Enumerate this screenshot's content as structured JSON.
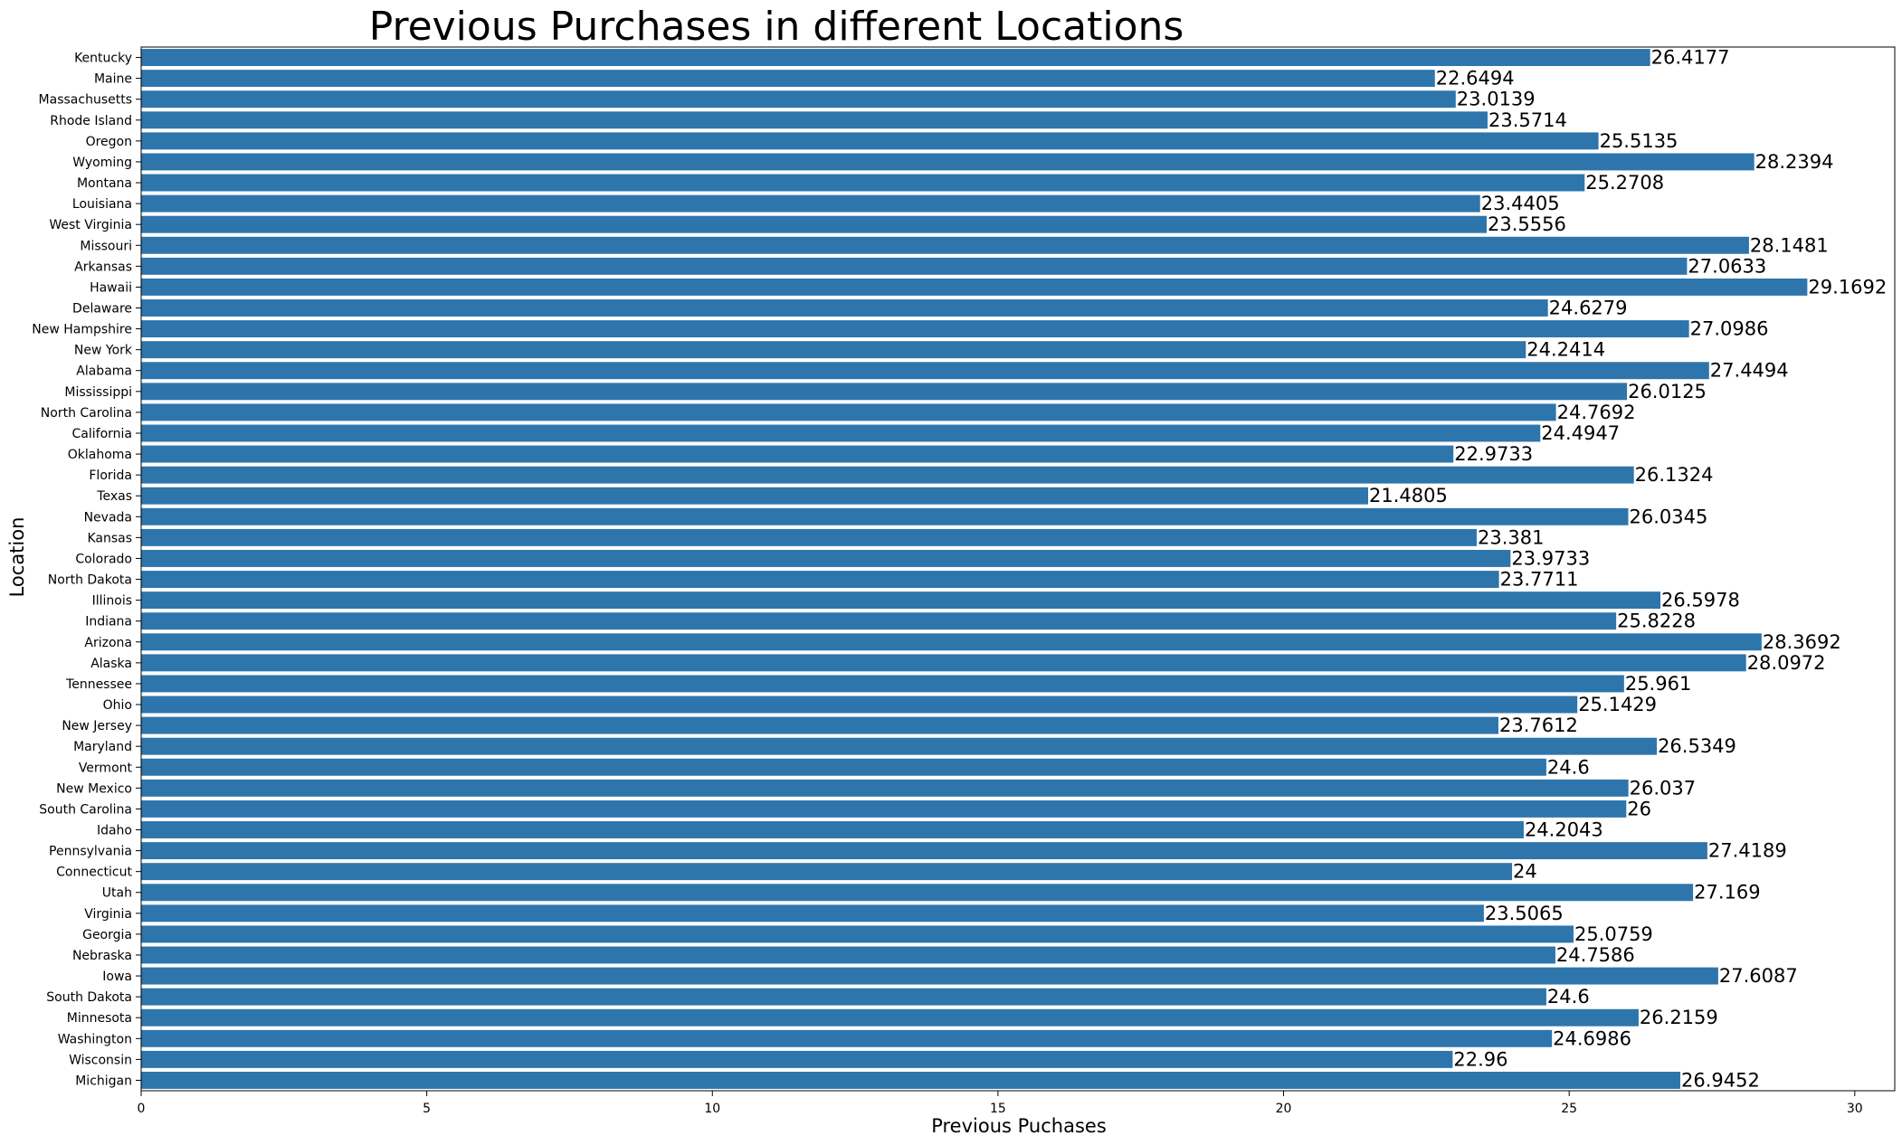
{
  "chart_data": {
    "type": "bar",
    "orientation": "horizontal",
    "title": "Previous Purchases in different Locations",
    "xlabel": "Previous Puchases",
    "ylabel": "Location",
    "xlim": [
      0,
      30.7
    ],
    "xticks": [
      0,
      5,
      10,
      15,
      20,
      25,
      30
    ],
    "grid": false,
    "bar_color": "#2e75ac",
    "categories": [
      "Kentucky",
      "Maine",
      "Massachusetts",
      "Rhode Island",
      "Oregon",
      "Wyoming",
      "Montana",
      "Louisiana",
      "West Virginia",
      "Missouri",
      "Arkansas",
      "Hawaii",
      "Delaware",
      "New Hampshire",
      "New York",
      "Alabama",
      "Mississippi",
      "North Carolina",
      "California",
      "Oklahoma",
      "Florida",
      "Texas",
      "Nevada",
      "Kansas",
      "Colorado",
      "North Dakota",
      "Illinois",
      "Indiana",
      "Arizona",
      "Alaska",
      "Tennessee",
      "Ohio",
      "New Jersey",
      "Maryland",
      "Vermont",
      "New Mexico",
      "South Carolina",
      "Idaho",
      "Pennsylvania",
      "Connecticut",
      "Utah",
      "Virginia",
      "Georgia",
      "Nebraska",
      "Iowa",
      "South Dakota",
      "Minnesota",
      "Washington",
      "Wisconsin",
      "Michigan"
    ],
    "values": [
      26.4177,
      22.6494,
      23.0139,
      23.5714,
      25.5135,
      28.2394,
      25.2708,
      23.4405,
      23.5556,
      28.1481,
      27.0633,
      29.1692,
      24.6279,
      27.0986,
      24.2414,
      27.4494,
      26.0125,
      24.7692,
      24.4947,
      22.9733,
      26.1324,
      21.4805,
      26.0345,
      23.381,
      23.9733,
      23.7711,
      26.5978,
      25.8228,
      28.3692,
      28.0972,
      25.961,
      25.1429,
      23.7612,
      26.5349,
      24.6,
      26.037,
      26,
      24.2043,
      27.4189,
      24,
      27.169,
      23.5065,
      25.0759,
      24.7586,
      27.6087,
      24.6,
      26.2159,
      24.6986,
      22.96,
      26.9452
    ],
    "data_labels": [
      "26.4177",
      "22.6494",
      "23.0139",
      "23.5714",
      "25.5135",
      "28.2394",
      "25.2708",
      "23.4405",
      "23.5556",
      "28.1481",
      "27.0633",
      "29.1692",
      "24.6279",
      "27.0986",
      "24.2414",
      "27.4494",
      "26.0125",
      "24.7692",
      "24.4947",
      "22.9733",
      "26.1324",
      "21.4805",
      "26.0345",
      "23.381",
      "23.9733",
      "23.7711",
      "26.5978",
      "25.8228",
      "28.3692",
      "28.0972",
      "25.961",
      "25.1429",
      "23.7612",
      "26.5349",
      "24.6",
      "26.037",
      "26",
      "24.2043",
      "27.4189",
      "24",
      "27.169",
      "23.5065",
      "25.0759",
      "24.7586",
      "27.6087",
      "24.6",
      "26.2159",
      "24.6986",
      "22.96",
      "26.9452"
    ]
  }
}
